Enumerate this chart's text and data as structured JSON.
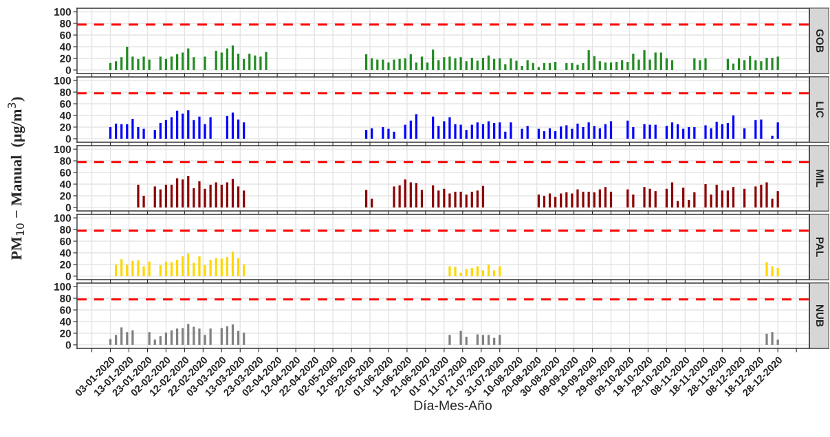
{
  "chart_data": [
    {
      "type": "bar",
      "annotations": [
        "GOB"
      ],
      "tick_labels": "y",
      "grid": true,
      "ylim": [
        -6,
        106
      ],
      "yticks": [
        0,
        20,
        40,
        60,
        80,
        100
      ],
      "xlim": [
        "2019-12-16",
        "2021-01-14"
      ],
      "xticks": [
        {
          "value": "2019-12-24",
          "label": null
        },
        {
          "value": "2020-01-03",
          "label": null
        },
        {
          "value": "2020-01-13",
          "label": null
        },
        {
          "value": "2020-01-23",
          "label": null
        },
        {
          "value": "2020-02-02",
          "label": null
        },
        {
          "value": "2020-02-12",
          "label": null
        },
        {
          "value": "2020-02-22",
          "label": null
        },
        {
          "value": "2020-03-03",
          "label": null
        },
        {
          "value": "2020-03-13",
          "label": null
        },
        {
          "value": "2020-03-23",
          "label": null
        },
        {
          "value": "2020-04-02",
          "label": null
        },
        {
          "value": "2020-04-12",
          "label": null
        },
        {
          "value": "2020-04-22",
          "label": null
        },
        {
          "value": "2020-05-02",
          "label": null
        },
        {
          "value": "2020-05-12",
          "label": null
        },
        {
          "value": "2020-05-22",
          "label": null
        },
        {
          "value": "2020-06-01",
          "label": null
        },
        {
          "value": "2020-06-11",
          "label": null
        },
        {
          "value": "2020-06-21",
          "label": null
        },
        {
          "value": "2020-07-01",
          "label": null
        },
        {
          "value": "2020-07-11",
          "label": null
        },
        {
          "value": "2020-07-21",
          "label": null
        },
        {
          "value": "2020-07-31",
          "label": null
        },
        {
          "value": "2020-08-10",
          "label": null
        },
        {
          "value": "2020-08-20",
          "label": null
        },
        {
          "value": "2020-08-30",
          "label": null
        },
        {
          "value": "2020-09-09",
          "label": null
        },
        {
          "value": "2020-09-19",
          "label": null
        },
        {
          "value": "2020-09-29",
          "label": null
        },
        {
          "value": "2020-10-09",
          "label": null
        },
        {
          "value": "2020-10-19",
          "label": null
        },
        {
          "value": "2020-10-29",
          "label": null
        },
        {
          "value": "2020-11-08",
          "label": null
        },
        {
          "value": "2020-11-18",
          "label": null
        },
        {
          "value": "2020-11-28",
          "label": null
        },
        {
          "value": "2020-12-08",
          "label": null
        },
        {
          "value": "2020-12-18",
          "label": null
        },
        {
          "value": "2020-12-28",
          "label": null
        },
        {
          "value": "2021-01-07",
          "label": null
        }
      ],
      "ref_lines": [
        {
          "axis": "y",
          "value": 78,
          "color": "#ff0000",
          "line_style": "dashed"
        }
      ],
      "x": [
        "2020-01-03",
        "2020-01-06",
        "2020-01-09",
        "2020-01-12",
        "2020-01-15",
        "2020-01-18",
        "2020-01-21",
        "2020-01-24",
        "2020-01-27",
        "2020-01-30",
        "2020-02-02",
        "2020-02-05",
        "2020-02-08",
        "2020-02-11",
        "2020-02-14",
        "2020-02-17",
        "2020-02-20",
        "2020-02-23",
        "2020-02-26",
        "2020-02-29",
        "2020-03-03",
        "2020-03-06",
        "2020-03-09",
        "2020-03-12",
        "2020-03-15",
        "2020-03-18",
        "2020-03-21",
        "2020-03-24",
        "2020-03-27",
        "2020-03-30",
        "2020-04-02",
        "2020-04-05",
        "2020-04-08",
        "2020-04-11",
        "2020-04-14",
        "2020-04-17",
        "2020-04-20",
        "2020-04-23",
        "2020-04-26",
        "2020-04-29",
        "2020-05-02",
        "2020-05-05",
        "2020-05-08",
        "2020-05-11",
        "2020-05-14",
        "2020-05-17",
        "2020-05-20",
        "2020-05-23",
        "2020-05-26",
        "2020-05-29",
        "2020-06-01",
        "2020-06-04",
        "2020-06-07",
        "2020-06-10",
        "2020-06-13",
        "2020-06-16",
        "2020-06-19",
        "2020-06-22",
        "2020-06-25",
        "2020-06-28",
        "2020-07-01",
        "2020-07-04",
        "2020-07-07",
        "2020-07-10",
        "2020-07-13",
        "2020-07-16",
        "2020-07-19",
        "2020-07-22",
        "2020-07-25",
        "2020-07-28",
        "2020-07-31",
        "2020-08-03",
        "2020-08-06",
        "2020-08-09",
        "2020-08-12",
        "2020-08-15",
        "2020-08-18",
        "2020-08-21",
        "2020-08-24",
        "2020-08-27",
        "2020-08-30",
        "2020-09-02",
        "2020-09-05",
        "2020-09-08",
        "2020-09-11",
        "2020-09-14",
        "2020-09-17",
        "2020-09-20",
        "2020-09-23",
        "2020-09-26",
        "2020-09-29",
        "2020-10-02",
        "2020-10-05",
        "2020-10-08",
        "2020-10-11",
        "2020-10-14",
        "2020-10-17",
        "2020-10-20",
        "2020-10-23",
        "2020-10-26",
        "2020-10-29",
        "2020-11-01",
        "2020-11-04",
        "2020-11-07",
        "2020-11-10",
        "2020-11-13",
        "2020-11-16",
        "2020-11-19",
        "2020-11-22",
        "2020-11-25",
        "2020-11-28",
        "2020-12-01",
        "2020-12-04",
        "2020-12-07",
        "2020-12-10",
        "2020-12-13",
        "2020-12-16",
        "2020-12-19",
        "2020-12-22",
        "2020-12-25",
        "2020-12-28"
      ],
      "series": [
        {
          "color": "#228b22",
          "values": [
            12,
            15,
            22,
            40,
            23,
            19,
            23,
            18,
            null,
            23,
            19,
            23,
            27,
            30,
            37,
            22,
            null,
            23,
            null,
            33,
            30,
            37,
            42,
            28,
            19,
            28,
            25,
            23,
            31,
            null,
            null,
            null,
            null,
            null,
            null,
            null,
            null,
            null,
            null,
            null,
            null,
            null,
            null,
            null,
            null,
            null,
            27,
            20,
            18,
            18,
            13,
            18,
            19,
            20,
            27,
            13,
            23,
            13,
            35,
            17,
            22,
            23,
            20,
            22,
            15,
            21,
            16,
            21,
            25,
            19,
            20,
            10,
            20,
            16,
            7,
            17,
            12,
            5,
            12,
            12,
            14,
            null,
            12,
            12,
            9,
            12,
            34,
            24,
            15,
            13,
            13,
            14,
            17,
            14,
            28,
            18,
            34,
            18,
            30,
            30,
            20,
            17,
            null,
            null,
            null,
            20,
            17,
            20,
            null,
            null,
            null,
            19,
            11,
            20,
            17,
            24,
            17,
            15,
            21,
            21,
            23
          ]
        }
      ]
    },
    {
      "type": "bar",
      "annotations": [
        "LIC"
      ],
      "tick_labels": "y",
      "grid": true,
      "ylim": [
        -6,
        106
      ],
      "yticks": [
        0,
        20,
        40,
        60,
        80,
        100
      ],
      "xlim": [
        "2019-12-16",
        "2021-01-14"
      ],
      "xticks": [
        {
          "value": "2019-12-24",
          "label": null
        },
        {
          "value": "2020-01-03",
          "label": null
        },
        {
          "value": "2020-01-13",
          "label": null
        },
        {
          "value": "2020-01-23",
          "label": null
        },
        {
          "value": "2020-02-02",
          "label": null
        },
        {
          "value": "2020-02-12",
          "label": null
        },
        {
          "value": "2020-02-22",
          "label": null
        },
        {
          "value": "2020-03-03",
          "label": null
        },
        {
          "value": "2020-03-13",
          "label": null
        },
        {
          "value": "2020-03-23",
          "label": null
        },
        {
          "value": "2020-04-02",
          "label": null
        },
        {
          "value": "2020-04-12",
          "label": null
        },
        {
          "value": "2020-04-22",
          "label": null
        },
        {
          "value": "2020-05-02",
          "label": null
        },
        {
          "value": "2020-05-12",
          "label": null
        },
        {
          "value": "2020-05-22",
          "label": null
        },
        {
          "value": "2020-06-01",
          "label": null
        },
        {
          "value": "2020-06-11",
          "label": null
        },
        {
          "value": "2020-06-21",
          "label": null
        },
        {
          "value": "2020-07-01",
          "label": null
        },
        {
          "value": "2020-07-11",
          "label": null
        },
        {
          "value": "2020-07-21",
          "label": null
        },
        {
          "value": "2020-07-31",
          "label": null
        },
        {
          "value": "2020-08-10",
          "label": null
        },
        {
          "value": "2020-08-20",
          "label": null
        },
        {
          "value": "2020-08-30",
          "label": null
        },
        {
          "value": "2020-09-09",
          "label": null
        },
        {
          "value": "2020-09-19",
          "label": null
        },
        {
          "value": "2020-09-29",
          "label": null
        },
        {
          "value": "2020-10-09",
          "label": null
        },
        {
          "value": "2020-10-19",
          "label": null
        },
        {
          "value": "2020-10-29",
          "label": null
        },
        {
          "value": "2020-11-08",
          "label": null
        },
        {
          "value": "2020-11-18",
          "label": null
        },
        {
          "value": "2020-11-28",
          "label": null
        },
        {
          "value": "2020-12-08",
          "label": null
        },
        {
          "value": "2020-12-18",
          "label": null
        },
        {
          "value": "2020-12-28",
          "label": null
        },
        {
          "value": "2021-01-07",
          "label": null
        }
      ],
      "ref_lines": [
        {
          "axis": "y",
          "value": 78,
          "color": "#ff0000",
          "line_style": "dashed"
        }
      ],
      "x": [
        "2020-01-03",
        "2020-01-06",
        "2020-01-09",
        "2020-01-12",
        "2020-01-15",
        "2020-01-18",
        "2020-01-21",
        "2020-01-24",
        "2020-01-27",
        "2020-01-30",
        "2020-02-02",
        "2020-02-05",
        "2020-02-08",
        "2020-02-11",
        "2020-02-14",
        "2020-02-17",
        "2020-02-20",
        "2020-02-23",
        "2020-02-26",
        "2020-02-29",
        "2020-03-03",
        "2020-03-06",
        "2020-03-09",
        "2020-03-12",
        "2020-03-15",
        "2020-03-18",
        "2020-03-21",
        "2020-03-24",
        "2020-03-27",
        "2020-03-30",
        "2020-04-02",
        "2020-04-05",
        "2020-04-08",
        "2020-04-11",
        "2020-04-14",
        "2020-04-17",
        "2020-04-20",
        "2020-04-23",
        "2020-04-26",
        "2020-04-29",
        "2020-05-02",
        "2020-05-05",
        "2020-05-08",
        "2020-05-11",
        "2020-05-14",
        "2020-05-17",
        "2020-05-20",
        "2020-05-23",
        "2020-05-26",
        "2020-05-29",
        "2020-06-01",
        "2020-06-04",
        "2020-06-07",
        "2020-06-10",
        "2020-06-13",
        "2020-06-16",
        "2020-06-19",
        "2020-06-22",
        "2020-06-25",
        "2020-06-28",
        "2020-07-01",
        "2020-07-04",
        "2020-07-07",
        "2020-07-10",
        "2020-07-13",
        "2020-07-16",
        "2020-07-19",
        "2020-07-22",
        "2020-07-25",
        "2020-07-28",
        "2020-07-31",
        "2020-08-03",
        "2020-08-06",
        "2020-08-09",
        "2020-08-12",
        "2020-08-15",
        "2020-08-18",
        "2020-08-21",
        "2020-08-24",
        "2020-08-27",
        "2020-08-30",
        "2020-09-02",
        "2020-09-05",
        "2020-09-08",
        "2020-09-11",
        "2020-09-14",
        "2020-09-17",
        "2020-09-20",
        "2020-09-23",
        "2020-09-26",
        "2020-09-29",
        "2020-10-02",
        "2020-10-05",
        "2020-10-08",
        "2020-10-11",
        "2020-10-14",
        "2020-10-17",
        "2020-10-20",
        "2020-10-23",
        "2020-10-26",
        "2020-10-29",
        "2020-11-01",
        "2020-11-04",
        "2020-11-07",
        "2020-11-10",
        "2020-11-13",
        "2020-11-16",
        "2020-11-19",
        "2020-11-22",
        "2020-11-25",
        "2020-11-28",
        "2020-12-01",
        "2020-12-04",
        "2020-12-07",
        "2020-12-10",
        "2020-12-13",
        "2020-12-16",
        "2020-12-19",
        "2020-12-22",
        "2020-12-25",
        "2020-12-28"
      ],
      "series": [
        {
          "color": "#0000ff",
          "values": [
            20,
            26,
            25,
            25,
            34,
            20,
            17,
            null,
            15,
            27,
            32,
            37,
            48,
            43,
            49,
            32,
            38,
            25,
            37,
            null,
            null,
            39,
            45,
            33,
            28,
            null,
            null,
            null,
            null,
            null,
            null,
            null,
            null,
            null,
            null,
            null,
            null,
            null,
            null,
            null,
            null,
            null,
            null,
            null,
            null,
            null,
            15,
            18,
            null,
            20,
            17,
            12,
            null,
            24,
            31,
            42,
            null,
            null,
            38,
            22,
            30,
            37,
            25,
            24,
            15,
            24,
            28,
            25,
            30,
            27,
            28,
            12,
            28,
            null,
            17,
            22,
            null,
            17,
            13,
            18,
            13,
            21,
            23,
            17,
            26,
            20,
            28,
            22,
            18,
            25,
            30,
            null,
            null,
            31,
            20,
            null,
            25,
            24,
            24,
            null,
            22,
            28,
            25,
            17,
            20,
            20,
            null,
            23,
            18,
            29,
            25,
            27,
            40,
            null,
            18,
            null,
            32,
            33,
            null,
            5,
            28
          ]
        }
      ]
    },
    {
      "type": "bar",
      "annotations": [
        "MIL"
      ],
      "ylabel": "PM$_{10}$ − Manual  (µg/m$^{3}$)",
      "tick_labels": "y",
      "grid": true,
      "ylim": [
        -6,
        106
      ],
      "yticks": [
        0,
        20,
        40,
        60,
        80,
        100
      ],
      "xlim": [
        "2019-12-16",
        "2021-01-14"
      ],
      "xticks": [
        {
          "value": "2019-12-24",
          "label": null
        },
        {
          "value": "2020-01-03",
          "label": null
        },
        {
          "value": "2020-01-13",
          "label": null
        },
        {
          "value": "2020-01-23",
          "label": null
        },
        {
          "value": "2020-02-02",
          "label": null
        },
        {
          "value": "2020-02-12",
          "label": null
        },
        {
          "value": "2020-02-22",
          "label": null
        },
        {
          "value": "2020-03-03",
          "label": null
        },
        {
          "value": "2020-03-13",
          "label": null
        },
        {
          "value": "2020-03-23",
          "label": null
        },
        {
          "value": "2020-04-02",
          "label": null
        },
        {
          "value": "2020-04-12",
          "label": null
        },
        {
          "value": "2020-04-22",
          "label": null
        },
        {
          "value": "2020-05-02",
          "label": null
        },
        {
          "value": "2020-05-12",
          "label": null
        },
        {
          "value": "2020-05-22",
          "label": null
        },
        {
          "value": "2020-06-01",
          "label": null
        },
        {
          "value": "2020-06-11",
          "label": null
        },
        {
          "value": "2020-06-21",
          "label": null
        },
        {
          "value": "2020-07-01",
          "label": null
        },
        {
          "value": "2020-07-11",
          "label": null
        },
        {
          "value": "2020-07-21",
          "label": null
        },
        {
          "value": "2020-07-31",
          "label": null
        },
        {
          "value": "2020-08-10",
          "label": null
        },
        {
          "value": "2020-08-20",
          "label": null
        },
        {
          "value": "2020-08-30",
          "label": null
        },
        {
          "value": "2020-09-09",
          "label": null
        },
        {
          "value": "2020-09-19",
          "label": null
        },
        {
          "value": "2020-09-29",
          "label": null
        },
        {
          "value": "2020-10-09",
          "label": null
        },
        {
          "value": "2020-10-19",
          "label": null
        },
        {
          "value": "2020-10-29",
          "label": null
        },
        {
          "value": "2020-11-08",
          "label": null
        },
        {
          "value": "2020-11-18",
          "label": null
        },
        {
          "value": "2020-11-28",
          "label": null
        },
        {
          "value": "2020-12-08",
          "label": null
        },
        {
          "value": "2020-12-18",
          "label": null
        },
        {
          "value": "2020-12-28",
          "label": null
        },
        {
          "value": "2021-01-07",
          "label": null
        }
      ],
      "ref_lines": [
        {
          "axis": "y",
          "value": 78,
          "color": "#ff0000",
          "line_style": "dashed"
        }
      ],
      "x": [
        "2020-01-18",
        "2020-01-21",
        "2020-01-24",
        "2020-01-27",
        "2020-01-30",
        "2020-02-02",
        "2020-02-05",
        "2020-02-08",
        "2020-02-11",
        "2020-02-14",
        "2020-02-17",
        "2020-02-20",
        "2020-02-23",
        "2020-02-26",
        "2020-02-29",
        "2020-03-03",
        "2020-03-06",
        "2020-03-09",
        "2020-03-12",
        "2020-03-15",
        "2020-03-18",
        "2020-03-21",
        "2020-03-24",
        "2020-03-27",
        "2020-03-30",
        "2020-04-02",
        "2020-04-05",
        "2020-04-08",
        "2020-04-11",
        "2020-04-14",
        "2020-04-17",
        "2020-04-20",
        "2020-04-23",
        "2020-04-26",
        "2020-04-29",
        "2020-05-02",
        "2020-05-05",
        "2020-05-08",
        "2020-05-11",
        "2020-05-14",
        "2020-05-17",
        "2020-05-20",
        "2020-05-23",
        "2020-05-26",
        "2020-05-29",
        "2020-06-01",
        "2020-06-04",
        "2020-06-07",
        "2020-06-10",
        "2020-06-13",
        "2020-06-16",
        "2020-06-19",
        "2020-06-22",
        "2020-06-25",
        "2020-06-28",
        "2020-07-01",
        "2020-07-04",
        "2020-07-07",
        "2020-07-10",
        "2020-07-13",
        "2020-07-16",
        "2020-07-19",
        "2020-07-22",
        "2020-07-25",
        "2020-07-28",
        "2020-07-31",
        "2020-08-03",
        "2020-08-06",
        "2020-08-09",
        "2020-08-12",
        "2020-08-15",
        "2020-08-18",
        "2020-08-21",
        "2020-08-24",
        "2020-08-27",
        "2020-08-30",
        "2020-09-02",
        "2020-09-05",
        "2020-09-08",
        "2020-09-11",
        "2020-09-14",
        "2020-09-17",
        "2020-09-20",
        "2020-09-23",
        "2020-09-26",
        "2020-09-29",
        "2020-10-02",
        "2020-10-05",
        "2020-10-08",
        "2020-10-11",
        "2020-10-14",
        "2020-10-17",
        "2020-10-20",
        "2020-10-23",
        "2020-10-26",
        "2020-10-29",
        "2020-11-01",
        "2020-11-04",
        "2020-11-07",
        "2020-11-10",
        "2020-11-13",
        "2020-11-16",
        "2020-11-19",
        "2020-11-22",
        "2020-11-25",
        "2020-11-28",
        "2020-12-01",
        "2020-12-04",
        "2020-12-07",
        "2020-12-10",
        "2020-12-13",
        "2020-12-16",
        "2020-12-19",
        "2020-12-22",
        "2020-12-25",
        "2020-12-28"
      ],
      "series": [
        {
          "color": "#8b0000",
          "values": [
            39,
            20,
            null,
            36,
            31,
            39,
            39,
            50,
            48,
            54,
            33,
            45,
            32,
            39,
            43,
            39,
            43,
            49,
            36,
            29,
            null,
            null,
            null,
            null,
            null,
            null,
            null,
            null,
            null,
            null,
            null,
            null,
            null,
            null,
            null,
            null,
            null,
            null,
            null,
            null,
            null,
            30,
            15,
            null,
            null,
            null,
            36,
            38,
            48,
            43,
            42,
            30,
            null,
            38,
            29,
            32,
            24,
            27,
            27,
            22,
            27,
            29,
            37,
            null,
            null,
            null,
            null,
            null,
            null,
            null,
            null,
            null,
            22,
            20,
            24,
            18,
            24,
            26,
            24,
            31,
            27,
            27,
            26,
            31,
            35,
            27,
            null,
            null,
            31,
            22,
            null,
            35,
            32,
            28,
            null,
            32,
            43,
            11,
            34,
            13,
            26,
            null,
            40,
            22,
            39,
            29,
            29,
            35,
            null,
            32,
            null,
            36,
            39,
            43,
            15,
            28
          ]
        }
      ]
    },
    {
      "type": "bar",
      "annotations": [
        "PAL"
      ],
      "tick_labels": "y",
      "grid": true,
      "ylim": [
        -6,
        106
      ],
      "yticks": [
        0,
        20,
        40,
        60,
        80,
        100
      ],
      "xlim": [
        "2019-12-16",
        "2021-01-14"
      ],
      "xticks": [
        {
          "value": "2019-12-24",
          "label": null
        },
        {
          "value": "2020-01-03",
          "label": null
        },
        {
          "value": "2020-01-13",
          "label": null
        },
        {
          "value": "2020-01-23",
          "label": null
        },
        {
          "value": "2020-02-02",
          "label": null
        },
        {
          "value": "2020-02-12",
          "label": null
        },
        {
          "value": "2020-02-22",
          "label": null
        },
        {
          "value": "2020-03-03",
          "label": null
        },
        {
          "value": "2020-03-13",
          "label": null
        },
        {
          "value": "2020-03-23",
          "label": null
        },
        {
          "value": "2020-04-02",
          "label": null
        },
        {
          "value": "2020-04-12",
          "label": null
        },
        {
          "value": "2020-04-22",
          "label": null
        },
        {
          "value": "2020-05-02",
          "label": null
        },
        {
          "value": "2020-05-12",
          "label": null
        },
        {
          "value": "2020-05-22",
          "label": null
        },
        {
          "value": "2020-06-01",
          "label": null
        },
        {
          "value": "2020-06-11",
          "label": null
        },
        {
          "value": "2020-06-21",
          "label": null
        },
        {
          "value": "2020-07-01",
          "label": null
        },
        {
          "value": "2020-07-11",
          "label": null
        },
        {
          "value": "2020-07-21",
          "label": null
        },
        {
          "value": "2020-07-31",
          "label": null
        },
        {
          "value": "2020-08-10",
          "label": null
        },
        {
          "value": "2020-08-20",
          "label": null
        },
        {
          "value": "2020-08-30",
          "label": null
        },
        {
          "value": "2020-09-09",
          "label": null
        },
        {
          "value": "2020-09-19",
          "label": null
        },
        {
          "value": "2020-09-29",
          "label": null
        },
        {
          "value": "2020-10-09",
          "label": null
        },
        {
          "value": "2020-10-19",
          "label": null
        },
        {
          "value": "2020-10-29",
          "label": null
        },
        {
          "value": "2020-11-08",
          "label": null
        },
        {
          "value": "2020-11-18",
          "label": null
        },
        {
          "value": "2020-11-28",
          "label": null
        },
        {
          "value": "2020-12-08",
          "label": null
        },
        {
          "value": "2020-12-18",
          "label": null
        },
        {
          "value": "2020-12-28",
          "label": null
        },
        {
          "value": "2021-01-07",
          "label": null
        }
      ],
      "ref_lines": [
        {
          "axis": "y",
          "value": 78,
          "color": "#ff0000",
          "line_style": "dashed"
        }
      ],
      "x": [
        "2020-01-06",
        "2020-01-09",
        "2020-01-12",
        "2020-01-15",
        "2020-01-18",
        "2020-01-21",
        "2020-01-24",
        "2020-01-27",
        "2020-01-30",
        "2020-02-02",
        "2020-02-05",
        "2020-02-08",
        "2020-02-11",
        "2020-02-14",
        "2020-02-17",
        "2020-02-20",
        "2020-02-23",
        "2020-02-26",
        "2020-02-29",
        "2020-03-03",
        "2020-03-06",
        "2020-03-09",
        "2020-03-12",
        "2020-03-15",
        "2020-07-04",
        "2020-07-07",
        "2020-07-10",
        "2020-07-13",
        "2020-07-16",
        "2020-07-19",
        "2020-07-22",
        "2020-07-25",
        "2020-07-28",
        "2020-07-31",
        "2020-12-22",
        "2020-12-25",
        "2020-12-28"
      ],
      "series": [
        {
          "color": "#ffd700",
          "values": [
            20,
            29,
            20,
            26,
            27,
            17,
            25,
            null,
            19,
            25,
            24,
            28,
            34,
            39,
            23,
            34,
            19,
            28,
            31,
            30,
            33,
            42,
            31,
            20,
            17,
            16,
            6,
            12,
            14,
            17,
            10,
            20,
            10,
            17,
            24,
            17,
            14
          ]
        }
      ]
    },
    {
      "type": "bar",
      "annotations": [
        "NUB"
      ],
      "xlabel": "Día-Mes-Año",
      "grid": true,
      "ylim": [
        -6,
        106
      ],
      "yticks": [
        0,
        20,
        40,
        60,
        80,
        100
      ],
      "xlim": [
        "2019-12-16",
        "2021-01-14"
      ],
      "xticks": [
        {
          "value": "2019-12-24",
          "label": null
        },
        {
          "value": "2020-01-03",
          "label": "03-01-2020"
        },
        {
          "value": "2020-01-13",
          "label": "13-01-2020"
        },
        {
          "value": "2020-01-23",
          "label": "23-01-2020"
        },
        {
          "value": "2020-02-02",
          "label": "02-02-2020"
        },
        {
          "value": "2020-02-12",
          "label": "12-02-2020"
        },
        {
          "value": "2020-02-22",
          "label": "22-02-2020"
        },
        {
          "value": "2020-03-03",
          "label": "03-03-2020"
        },
        {
          "value": "2020-03-13",
          "label": "13-03-2020"
        },
        {
          "value": "2020-03-23",
          "label": "23-03-2020"
        },
        {
          "value": "2020-04-02",
          "label": "02-04-2020"
        },
        {
          "value": "2020-04-12",
          "label": "12-04-2020"
        },
        {
          "value": "2020-04-22",
          "label": "22-04-2020"
        },
        {
          "value": "2020-05-02",
          "label": "02-05-2020"
        },
        {
          "value": "2020-05-12",
          "label": "12-05-2020"
        },
        {
          "value": "2020-05-22",
          "label": "22-05-2020"
        },
        {
          "value": "2020-06-01",
          "label": "01-06-2020"
        },
        {
          "value": "2020-06-11",
          "label": "11-06-2020"
        },
        {
          "value": "2020-06-21",
          "label": "21-06-2020"
        },
        {
          "value": "2020-07-01",
          "label": "01-07-2020"
        },
        {
          "value": "2020-07-11",
          "label": "11-07-2020"
        },
        {
          "value": "2020-07-21",
          "label": "21-07-2020"
        },
        {
          "value": "2020-07-31",
          "label": "31-07-2020"
        },
        {
          "value": "2020-08-10",
          "label": "10-08-2020"
        },
        {
          "value": "2020-08-20",
          "label": "20-08-2020"
        },
        {
          "value": "2020-08-30",
          "label": "30-08-2020"
        },
        {
          "value": "2020-09-09",
          "label": "09-09-2020"
        },
        {
          "value": "2020-09-19",
          "label": "19-09-2020"
        },
        {
          "value": "2020-09-29",
          "label": "29-09-2020"
        },
        {
          "value": "2020-10-09",
          "label": "09-10-2020"
        },
        {
          "value": "2020-10-19",
          "label": "19-10-2020"
        },
        {
          "value": "2020-10-29",
          "label": "29-10-2020"
        },
        {
          "value": "2020-11-08",
          "label": "08-11-2020"
        },
        {
          "value": "2020-11-18",
          "label": "18-11-2020"
        },
        {
          "value": "2020-11-28",
          "label": "28-11-2020"
        },
        {
          "value": "2020-12-08",
          "label": "08-12-2020"
        },
        {
          "value": "2020-12-18",
          "label": "18-12-2020"
        },
        {
          "value": "2020-12-28",
          "label": "28-12-2020"
        },
        {
          "value": "2021-01-07",
          "label": null
        }
      ],
      "ref_lines": [
        {
          "axis": "y",
          "value": 78,
          "color": "#ff0000",
          "line_style": "dashed"
        }
      ],
      "x": [
        "2020-01-03",
        "2020-01-06",
        "2020-01-09",
        "2020-01-12",
        "2020-01-15",
        "2020-01-24",
        "2020-01-27",
        "2020-01-30",
        "2020-02-02",
        "2020-02-05",
        "2020-02-08",
        "2020-02-11",
        "2020-02-14",
        "2020-02-17",
        "2020-02-20",
        "2020-02-23",
        "2020-02-26",
        "2020-03-03",
        "2020-03-06",
        "2020-03-09",
        "2020-03-12",
        "2020-03-15",
        "2020-07-04",
        "2020-07-10",
        "2020-07-13",
        "2020-07-19",
        "2020-07-22",
        "2020-07-25",
        "2020-07-28",
        "2020-07-31",
        "2020-12-22",
        "2020-12-25",
        "2020-12-28"
      ],
      "series": [
        {
          "color": "#808080",
          "values": [
            10,
            17,
            30,
            22,
            25,
            22,
            9,
            15,
            21,
            25,
            28,
            29,
            36,
            31,
            28,
            17,
            28,
            29,
            32,
            35,
            24,
            21,
            17,
            24,
            14,
            18,
            17,
            17,
            12,
            17,
            19,
            22,
            9
          ]
        }
      ]
    }
  ]
}
